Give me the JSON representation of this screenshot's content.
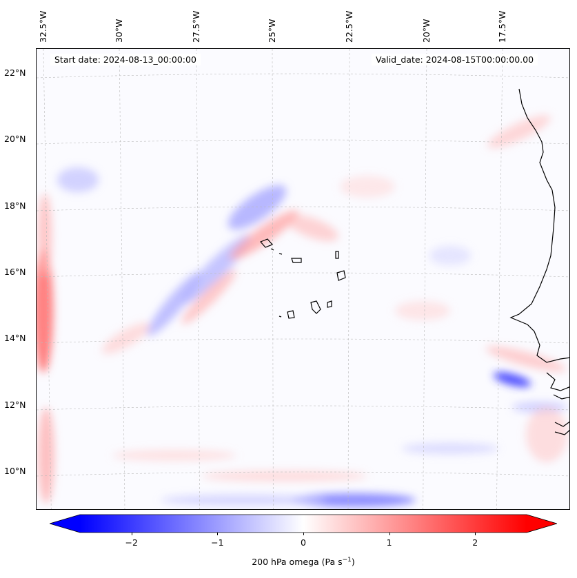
{
  "map": {
    "start_label": "Start date: 2024-08-13_00:00:00",
    "valid_label": "Valid_date: 2024-08-15T00:00:00.00",
    "lon_labels": [
      "32.5°W",
      "30°W",
      "27.5°W",
      "25°W",
      "22.5°W",
      "20°W",
      "17.5°W"
    ],
    "lat_labels": [
      "22°N",
      "20°N",
      "18°N",
      "16°N",
      "14°N",
      "12°N",
      "10°N"
    ],
    "field": "200 hPa omega",
    "colors": {
      "negative": "#0000ff",
      "zero": "#ffffff",
      "positive": "#ff0000",
      "coast": "#000000"
    }
  },
  "colorbar": {
    "label_prefix": "200 hPa omega (Pa s",
    "label_exp": "−1",
    "label_suffix": ")",
    "ticks": [
      "−2",
      "−1",
      "0",
      "1",
      "2"
    ],
    "range": [
      -2.6,
      2.6
    ]
  }
}
